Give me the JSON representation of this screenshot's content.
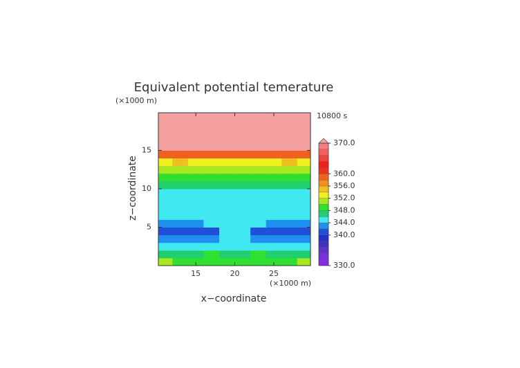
{
  "chart_data": {
    "type": "contour",
    "title": "Equivalent potential temerature",
    "time_label": "10800 s",
    "x_label": "x−coordinate",
    "y_label": "z−coordinate",
    "x_unit": "(×1000 m)",
    "y_unit": "(×1000 m)",
    "xlim": [
      10.2,
      29.7
    ],
    "ylim": [
      0,
      19.9
    ],
    "xticks": [
      15,
      20,
      25
    ],
    "yticks": [
      5,
      10,
      15
    ],
    "x": [
      11,
      13,
      15,
      17,
      19,
      21,
      23,
      25,
      27,
      29
    ],
    "y": [
      0.5,
      1.5,
      2.5,
      3.5,
      4.5,
      5.5,
      6.5,
      7.5,
      8.5,
      9.5,
      10.5,
      11.5,
      12.5,
      13.5,
      14.5,
      15.5,
      16.5,
      17.5,
      18.5,
      19.5
    ],
    "z": [
      [
        350,
        349,
        349,
        349,
        349,
        349,
        349,
        349,
        349,
        350
      ],
      [
        347,
        347,
        347,
        348,
        347,
        347,
        348,
        347,
        347,
        347
      ],
      [
        345,
        345,
        345,
        345,
        344,
        344,
        345,
        345,
        345,
        345
      ],
      [
        343,
        343,
        343,
        343,
        344,
        344,
        343,
        343,
        343,
        343
      ],
      [
        341,
        341,
        341,
        341,
        344,
        344,
        341,
        341,
        341,
        341
      ],
      [
        343,
        343,
        343,
        345,
        345,
        345,
        345,
        343,
        343,
        343
      ],
      [
        344,
        344,
        344,
        344,
        345,
        345,
        344,
        344,
        344,
        344
      ],
      [
        345,
        345,
        345,
        345,
        345,
        345,
        345,
        345,
        345,
        345
      ],
      [
        345,
        345,
        345,
        345,
        345,
        345,
        345,
        345,
        345,
        345
      ],
      [
        345,
        345,
        345,
        345,
        345,
        345,
        345,
        345,
        345,
        345
      ],
      [
        346,
        346,
        346,
        346,
        346,
        346,
        346,
        346,
        346,
        346
      ],
      [
        348,
        348,
        349,
        348,
        348,
        348,
        348,
        349,
        348,
        348
      ],
      [
        351,
        350,
        350,
        351,
        350,
        350,
        351,
        350,
        350,
        351
      ],
      [
        353,
        354,
        353,
        353,
        353,
        353,
        353,
        353,
        354,
        353
      ],
      [
        359,
        358,
        358,
        358,
        359,
        359,
        358,
        358,
        358,
        359
      ],
      [
        371,
        371,
        371,
        371,
        371,
        371,
        371,
        371,
        371,
        371
      ],
      [
        372,
        372,
        372,
        372,
        372,
        372,
        372,
        372,
        372,
        372
      ],
      [
        372,
        372,
        372,
        372,
        372,
        372,
        372,
        372,
        372,
        372
      ],
      [
        372,
        372,
        372,
        372,
        372,
        372,
        372,
        372,
        372,
        372
      ],
      [
        372,
        372,
        372,
        372,
        372,
        372,
        372,
        372,
        372,
        372
      ]
    ],
    "colorbar": {
      "levels": [
        330,
        332,
        334,
        336,
        338,
        340,
        342,
        344,
        346,
        348,
        350,
        352,
        354,
        356,
        358,
        360,
        362,
        364,
        366,
        368,
        370
      ],
      "colors": [
        "#8a2be2",
        "#7a30d8",
        "#6030c8",
        "#4030c0",
        "#2030c8",
        "#2050d8",
        "#2090f0",
        "#40e8f0",
        "#20d070",
        "#30e030",
        "#a8e820",
        "#f0f020",
        "#f0c020",
        "#f09020",
        "#f06020",
        "#f03020",
        "#f02020",
        "#f04040",
        "#f06060",
        "#f08080"
      ],
      "extend_color": "#f4a0a0",
      "ticks": [
        {
          "value": 330,
          "label": "330.0"
        },
        {
          "value": 340,
          "label": "340.0"
        },
        {
          "value": 344,
          "label": "344.0"
        },
        {
          "value": 348,
          "label": "348.0"
        },
        {
          "value": 352,
          "label": "352.0"
        },
        {
          "value": 356,
          "label": "356.0"
        },
        {
          "value": 360,
          "label": "360.0"
        },
        {
          "value": 370,
          "label": "370.0"
        }
      ]
    }
  }
}
